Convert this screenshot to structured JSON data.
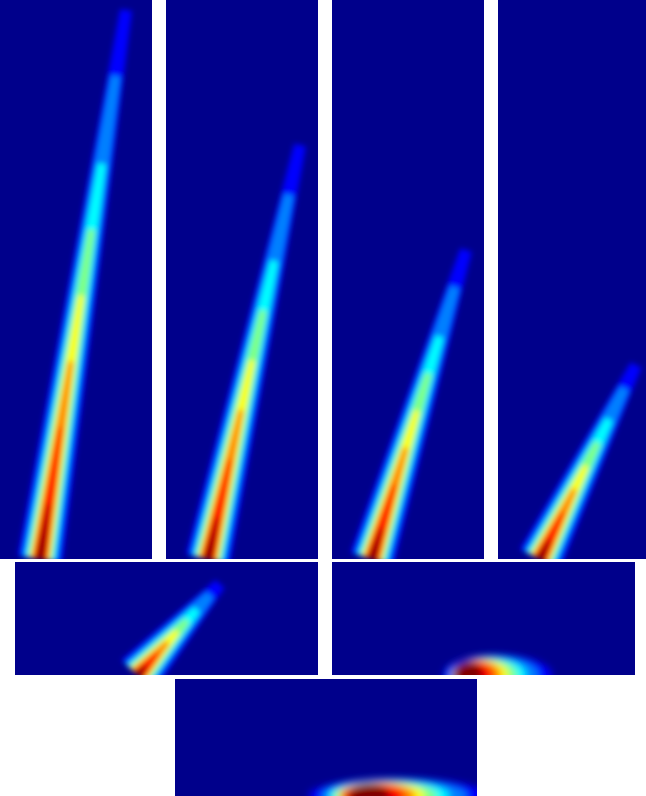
{
  "figure": {
    "background_color": "#ffffff",
    "panel_background": "#00008b",
    "colormap": [
      "#00008b",
      "#0000ff",
      "#0080ff",
      "#00ffff",
      "#80ff80",
      "#ffff00",
      "#ff8000",
      "#ff0000",
      "#800000"
    ],
    "panels": [
      {
        "id": "p1",
        "plume": "steep"
      },
      {
        "id": "p2",
        "plume": "steep"
      },
      {
        "id": "p3",
        "plume": "medium"
      },
      {
        "id": "p4",
        "plume": "shallow"
      },
      {
        "id": "p5",
        "plume": "low"
      },
      {
        "id": "p6",
        "plume": "flat"
      },
      {
        "id": "p7",
        "plume": "flat"
      }
    ]
  }
}
